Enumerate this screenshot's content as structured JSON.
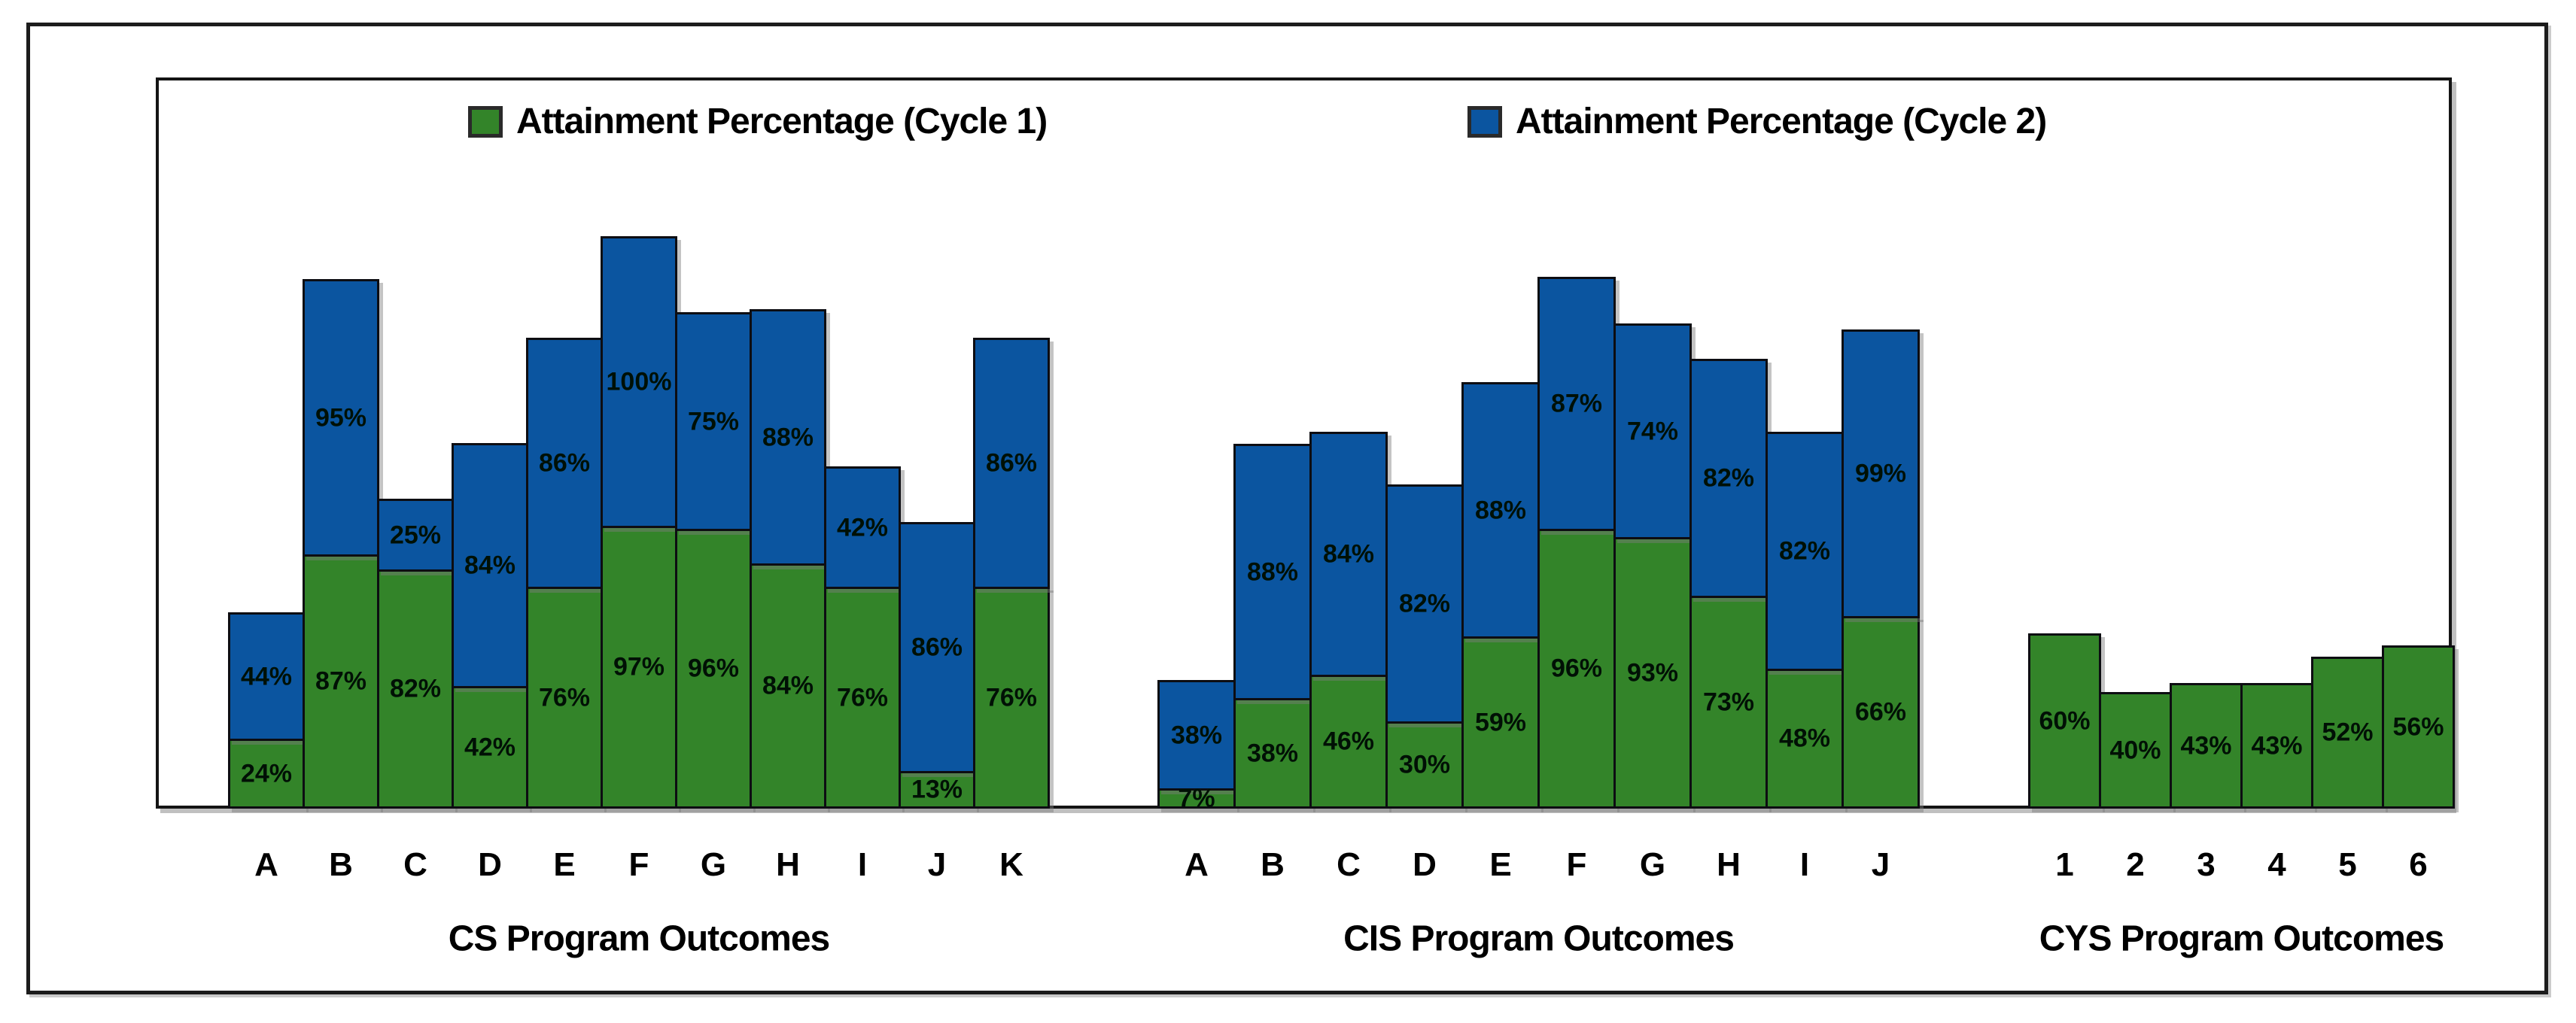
{
  "legend": {
    "items": [
      {
        "id": "cycle1",
        "label": "Attainment Percentage (Cycle 1)",
        "color": "#338429"
      },
      {
        "id": "cycle2",
        "label": "Attainment Percentage (Cycle 2)",
        "color": "#0b55a0"
      }
    ]
  },
  "chart_data": {
    "type": "bar",
    "stacked": true,
    "orientation": "vertical",
    "value_unit": "%",
    "data_label_suffix": "%",
    "gridlines": false,
    "y_axis_shown": false,
    "legend_position": "top",
    "colors": {
      "cycle1": "#338429",
      "cycle2": "#0b55a0"
    },
    "series_names": [
      "Attainment Percentage (Cycle 1)",
      "Attainment Percentage (Cycle 2)"
    ],
    "groups": [
      {
        "title": "CS Program Outcomes",
        "categories": [
          "A",
          "B",
          "C",
          "D",
          "E",
          "F",
          "G",
          "H",
          "I",
          "J",
          "K"
        ],
        "series": [
          {
            "name": "Attainment Percentage (Cycle 1)",
            "values": [
              24,
              87,
              82,
              42,
              76,
              97,
              96,
              84,
              76,
              13,
              76
            ]
          },
          {
            "name": "Attainment Percentage (Cycle 2)",
            "values": [
              44,
              95,
              25,
              84,
              86,
              100,
              75,
              88,
              42,
              86,
              86
            ]
          }
        ]
      },
      {
        "title": "CIS Program Outcomes",
        "categories": [
          "A",
          "B",
          "C",
          "D",
          "E",
          "F",
          "G",
          "H",
          "I",
          "J"
        ],
        "series": [
          {
            "name": "Attainment Percentage (Cycle 1)",
            "values": [
              7,
              38,
              46,
              30,
              59,
              96,
              93,
              73,
              48,
              66
            ]
          },
          {
            "name": "Attainment Percentage (Cycle 2)",
            "values": [
              38,
              88,
              84,
              82,
              88,
              87,
              74,
              82,
              82,
              99
            ]
          }
        ]
      },
      {
        "title": "CYS Program Outcomes",
        "categories": [
          "1",
          "2",
          "3",
          "4",
          "5",
          "6"
        ],
        "series": [
          {
            "name": "Attainment Percentage (Cycle 1)",
            "values": [
              60,
              40,
              43,
              43,
              52,
              56
            ]
          }
        ]
      }
    ]
  }
}
